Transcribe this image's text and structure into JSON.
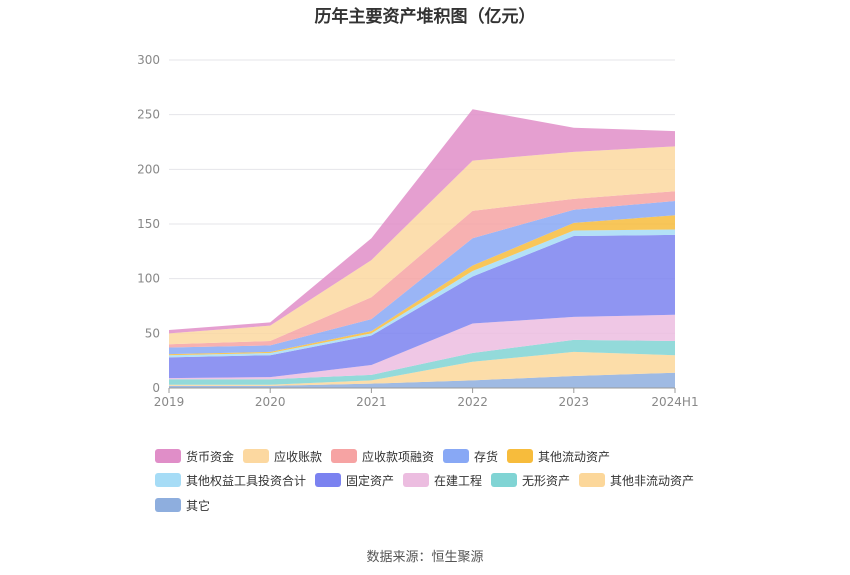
{
  "chart_data": {
    "type": "area",
    "title": "历年主要资产堆积图（亿元）",
    "categories": [
      "2019",
      "2020",
      "2021",
      "2022",
      "2023",
      "2024H1"
    ],
    "ylim": [
      0,
      300
    ],
    "yticks": [
      0,
      50,
      100,
      150,
      200,
      250,
      300
    ],
    "grid": true,
    "legend_position": "bottom",
    "series": [
      {
        "name": "其它",
        "color": "#8eaede",
        "values": [
          2,
          2,
          4,
          7,
          11,
          14
        ]
      },
      {
        "name": "其他非流动资产",
        "color": "#fcd79a",
        "values": [
          1,
          1,
          3,
          17,
          22,
          16
        ]
      },
      {
        "name": "无形资产",
        "color": "#80d4d4",
        "values": [
          5,
          5,
          5,
          8,
          11,
          13
        ]
      },
      {
        "name": "在建工程",
        "color": "#ecbde0",
        "values": [
          1,
          2,
          9,
          27,
          21,
          24
        ]
      },
      {
        "name": "固定资产",
        "color": "#7b82f0",
        "values": [
          19,
          20,
          27,
          43,
          74,
          73
        ]
      },
      {
        "name": "其他权益工具投资合计",
        "color": "#a6dcf6",
        "values": [
          2,
          2,
          2,
          5,
          5,
          5
        ]
      },
      {
        "name": "其他流动资产",
        "color": "#f7bc3c",
        "values": [
          1,
          1,
          2,
          5,
          7,
          13
        ]
      },
      {
        "name": "存货",
        "color": "#88a8f5",
        "values": [
          6,
          6,
          11,
          25,
          12,
          13
        ]
      },
      {
        "name": "应收款项融资",
        "color": "#f6a3a3",
        "values": [
          3,
          4,
          20,
          25,
          10,
          9
        ]
      },
      {
        "name": "应收账款",
        "color": "#fcd8a0",
        "values": [
          10,
          14,
          34,
          46,
          43,
          41
        ]
      },
      {
        "name": "货币资金",
        "color": "#e08ec8",
        "values": [
          3,
          3,
          20,
          47,
          22,
          14
        ]
      }
    ]
  },
  "legend": {
    "items": [
      {
        "name": "货币资金",
        "color": "#e08ec8"
      },
      {
        "name": "应收账款",
        "color": "#fcd8a0"
      },
      {
        "name": "应收款项融资",
        "color": "#f6a3a3"
      },
      {
        "name": "存货",
        "color": "#88a8f5"
      },
      {
        "name": "其他流动资产",
        "color": "#f7bc3c"
      },
      {
        "name": "其他权益工具投资合计",
        "color": "#a6dcf6"
      },
      {
        "name": "固定资产",
        "color": "#7b82f0"
      },
      {
        "name": "在建工程",
        "color": "#ecbde0"
      },
      {
        "name": "无形资产",
        "color": "#80d4d4"
      },
      {
        "name": "其他非流动资产",
        "color": "#fcd79a"
      },
      {
        "name": "其它",
        "color": "#8eaede"
      }
    ]
  },
  "source": "数据来源：恒生聚源"
}
